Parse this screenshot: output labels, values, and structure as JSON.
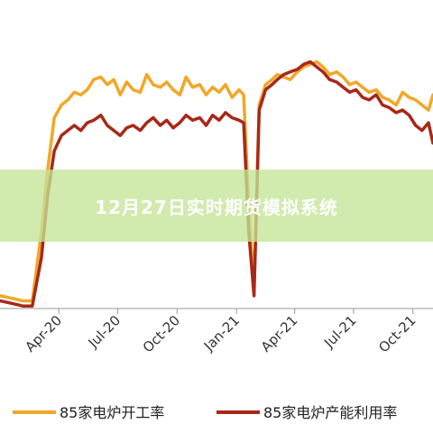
{
  "banner": {
    "title": "12月27日实时期货模拟系统"
  },
  "colors": {
    "series_orange": "#F0A828",
    "series_red": "#A82818",
    "axis": "#9a9a9a",
    "banner_bg": "#C4E496"
  },
  "chart_data": {
    "type": "line",
    "x_tick_labels": [
      "Apr-20",
      "Jul-20",
      "Oct-20",
      "Jan-21",
      "Apr-21",
      "Jul-21",
      "Oct-21"
    ],
    "x_range": [
      "2020-01-01",
      "2021-11-01"
    ],
    "ylim": [
      0,
      100
    ],
    "grid": false,
    "legend_position": "bottom",
    "series": [
      {
        "name": "85家电炉开工率",
        "color": "#F0A828",
        "x": [
          "2020-01-01",
          "2020-01-20",
          "2020-02-05",
          "2020-02-20",
          "2020-03-05",
          "2020-03-15",
          "2020-03-25",
          "2020-04-05",
          "2020-04-15",
          "2020-04-25",
          "2020-05-05",
          "2020-05-15",
          "2020-05-25",
          "2020-06-05",
          "2020-06-15",
          "2020-06-25",
          "2020-07-05",
          "2020-07-15",
          "2020-07-25",
          "2020-08-05",
          "2020-08-15",
          "2020-08-25",
          "2020-09-05",
          "2020-09-15",
          "2020-09-25",
          "2020-10-05",
          "2020-10-15",
          "2020-10-25",
          "2020-11-05",
          "2020-11-15",
          "2020-11-25",
          "2020-12-05",
          "2020-12-15",
          "2020-12-25",
          "2021-01-05",
          "2021-01-12",
          "2021-01-20",
          "2021-01-28",
          "2021-02-05",
          "2021-02-15",
          "2021-02-25",
          "2021-03-05",
          "2021-03-15",
          "2021-03-25",
          "2021-04-05",
          "2021-04-15",
          "2021-04-25",
          "2021-05-05",
          "2021-05-15",
          "2021-05-25",
          "2021-06-05",
          "2021-06-15",
          "2021-06-25",
          "2021-07-05",
          "2021-07-15",
          "2021-07-25",
          "2021-08-05",
          "2021-08-15",
          "2021-08-25",
          "2021-09-05",
          "2021-09-15",
          "2021-09-25",
          "2021-10-05",
          "2021-10-15",
          "2021-10-25",
          "2021-11-01"
        ],
        "values": [
          5,
          4,
          3,
          3,
          30,
          55,
          75,
          80,
          82,
          85,
          84,
          86,
          90,
          91,
          88,
          90,
          84,
          89,
          86,
          85,
          92,
          88,
          87,
          89,
          86,
          84,
          91,
          87,
          88,
          84,
          87,
          85,
          88,
          83,
          86,
          84,
          40,
          8,
          80,
          88,
          90,
          92,
          91,
          90,
          93,
          95,
          96,
          97,
          95,
          92,
          93,
          91,
          88,
          89,
          87,
          85,
          86,
          83,
          82,
          80,
          85,
          83,
          82,
          80,
          78,
          84
        ]
      },
      {
        "name": "85家电炉产能利用率",
        "color": "#A82818",
        "x": [
          "2020-01-01",
          "2020-01-20",
          "2020-02-05",
          "2020-02-20",
          "2020-03-05",
          "2020-03-15",
          "2020-03-25",
          "2020-04-05",
          "2020-04-15",
          "2020-04-25",
          "2020-05-05",
          "2020-05-15",
          "2020-05-25",
          "2020-06-05",
          "2020-06-15",
          "2020-06-25",
          "2020-07-05",
          "2020-07-15",
          "2020-07-25",
          "2020-08-05",
          "2020-08-15",
          "2020-08-25",
          "2020-09-05",
          "2020-09-15",
          "2020-09-25",
          "2020-10-05",
          "2020-10-15",
          "2020-10-25",
          "2020-11-05",
          "2020-11-15",
          "2020-11-25",
          "2020-12-05",
          "2020-12-15",
          "2020-12-25",
          "2021-01-05",
          "2021-01-12",
          "2021-01-20",
          "2021-01-28",
          "2021-02-05",
          "2021-02-15",
          "2021-02-25",
          "2021-03-05",
          "2021-03-15",
          "2021-03-25",
          "2021-04-05",
          "2021-04-15",
          "2021-04-25",
          "2021-05-05",
          "2021-05-15",
          "2021-05-25",
          "2021-06-05",
          "2021-06-15",
          "2021-06-25",
          "2021-07-05",
          "2021-07-15",
          "2021-07-25",
          "2021-08-05",
          "2021-08-15",
          "2021-08-25",
          "2021-09-05",
          "2021-09-15",
          "2021-09-25",
          "2021-10-05",
          "2021-10-15",
          "2021-10-25",
          "2021-11-01"
        ],
        "values": [
          3,
          2,
          1,
          1,
          20,
          45,
          62,
          68,
          70,
          72,
          70,
          73,
          74,
          76,
          72,
          70,
          68,
          71,
          72,
          70,
          73,
          75,
          72,
          74,
          71,
          73,
          76,
          74,
          75,
          72,
          76,
          74,
          77,
          75,
          74,
          73,
          30,
          5,
          78,
          86,
          88,
          90,
          92,
          93,
          94,
          96,
          97,
          95,
          93,
          90,
          89,
          87,
          85,
          86,
          83,
          82,
          84,
          80,
          79,
          77,
          78,
          76,
          72,
          70,
          73,
          65
        ]
      }
    ]
  }
}
